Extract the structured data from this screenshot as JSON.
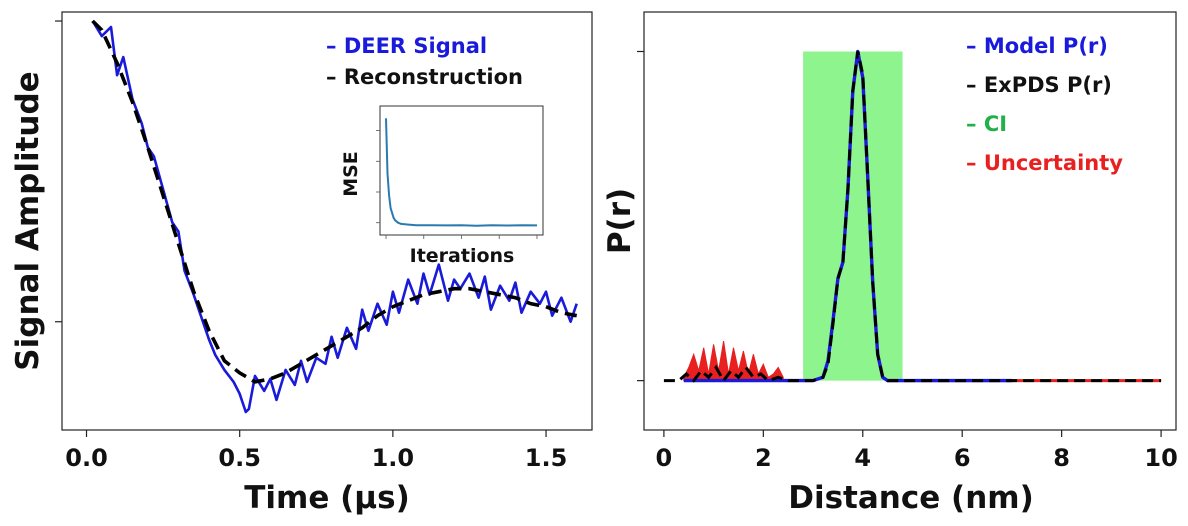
{
  "colors": {
    "deer": "#1a1adb",
    "reconstruction": "#000000",
    "model": "#1a1adb",
    "expds": "#000000",
    "ci": "#8ef58e",
    "ci_text": "#22b04a",
    "uncertainty": "#e82020",
    "inset_line": "#2a7ab0"
  },
  "chart_data": [
    {
      "type": "line",
      "title": "",
      "xlabel": "Time (μs)",
      "ylabel": "Signal Amplitude",
      "xlim": [
        -0.08,
        1.65
      ],
      "ylim": [
        -0.36,
        1.03
      ],
      "xticks": [
        0.0,
        0.5,
        1.0,
        1.5
      ],
      "xtick_labels": [
        "0.0",
        "0.5",
        "1.0",
        "1.5"
      ],
      "yticks": [
        0.0,
        1.0
      ],
      "legend_position": "top-right",
      "series": [
        {
          "name": "DEER Signal",
          "style": "solid",
          "color": "#1a1adb",
          "x": [
            0.02,
            0.05,
            0.08,
            0.1,
            0.12,
            0.15,
            0.18,
            0.2,
            0.22,
            0.25,
            0.28,
            0.3,
            0.32,
            0.35,
            0.38,
            0.4,
            0.42,
            0.45,
            0.48,
            0.5,
            0.52,
            0.53,
            0.55,
            0.58,
            0.6,
            0.62,
            0.65,
            0.68,
            0.7,
            0.72,
            0.75,
            0.78,
            0.8,
            0.82,
            0.85,
            0.88,
            0.9,
            0.92,
            0.95,
            0.98,
            1.0,
            1.02,
            1.05,
            1.08,
            1.1,
            1.12,
            1.15,
            1.18,
            1.2,
            1.22,
            1.25,
            1.28,
            1.3,
            1.32,
            1.35,
            1.38,
            1.4,
            1.42,
            1.45,
            1.48,
            1.5,
            1.52,
            1.55,
            1.58,
            1.6
          ],
          "y": [
            1.0,
            0.95,
            0.98,
            0.82,
            0.88,
            0.74,
            0.66,
            0.58,
            0.55,
            0.44,
            0.33,
            0.3,
            0.17,
            0.09,
            0.0,
            -0.06,
            -0.11,
            -0.16,
            -0.2,
            -0.24,
            -0.3,
            -0.29,
            -0.18,
            -0.23,
            -0.19,
            -0.26,
            -0.16,
            -0.21,
            -0.13,
            -0.2,
            -0.12,
            -0.14,
            -0.05,
            -0.12,
            -0.02,
            -0.09,
            0.04,
            -0.03,
            0.06,
            -0.01,
            0.1,
            0.03,
            0.14,
            0.06,
            0.16,
            0.09,
            0.19,
            0.07,
            0.14,
            0.11,
            0.16,
            0.08,
            0.15,
            0.04,
            0.12,
            0.07,
            0.13,
            0.03,
            0.1,
            0.06,
            0.1,
            0.02,
            0.08,
            0.0,
            0.06
          ]
        },
        {
          "name": "Reconstruction",
          "style": "dashed",
          "color": "#000000",
          "x": [
            0.02,
            0.05,
            0.1,
            0.15,
            0.2,
            0.25,
            0.3,
            0.35,
            0.4,
            0.45,
            0.5,
            0.55,
            0.6,
            0.65,
            0.7,
            0.75,
            0.8,
            0.85,
            0.9,
            0.95,
            1.0,
            1.05,
            1.1,
            1.15,
            1.2,
            1.25,
            1.3,
            1.35,
            1.4,
            1.45,
            1.5,
            1.55,
            1.6
          ],
          "y": [
            1.0,
            0.97,
            0.86,
            0.73,
            0.58,
            0.42,
            0.26,
            0.1,
            -0.03,
            -0.13,
            -0.17,
            -0.2,
            -0.19,
            -0.17,
            -0.14,
            -0.11,
            -0.08,
            -0.05,
            -0.02,
            0.02,
            0.05,
            0.07,
            0.09,
            0.1,
            0.11,
            0.11,
            0.1,
            0.09,
            0.08,
            0.06,
            0.05,
            0.03,
            0.02
          ]
        }
      ],
      "inset": {
        "xlabel": "Iterations",
        "ylabel": "MSE",
        "series": [
          {
            "name": "MSE",
            "x": [
              0,
              1,
              2,
              3,
              4,
              5,
              6,
              8,
              10,
              15,
              20,
              30,
              40,
              50,
              60,
              70,
              80,
              90,
              100
            ],
            "y": [
              0.95,
              0.5,
              0.32,
              0.22,
              0.18,
              0.14,
              0.12,
              0.1,
              0.09,
              0.085,
              0.08,
              0.08,
              0.078,
              0.08,
              0.076,
              0.08,
              0.077,
              0.08,
              0.078
            ]
          }
        ]
      }
    },
    {
      "type": "line",
      "title": "",
      "xlabel": "Distance (nm)",
      "ylabel": "P(r)",
      "xlim": [
        -0.4,
        10.3
      ],
      "ylim": [
        -0.15,
        1.12
      ],
      "xticks": [
        0,
        2,
        4,
        6,
        8,
        10
      ],
      "xtick_labels": [
        "0",
        "2",
        "4",
        "6",
        "8",
        "10"
      ],
      "yticks": [
        0.0,
        1.0
      ],
      "legend_position": "top-right",
      "ci_band": {
        "x_start": 2.8,
        "x_end": 4.8,
        "y_bottom": 0.0,
        "y_top": 1.0
      },
      "series": [
        {
          "name": "Model P(r)",
          "style": "solid",
          "color": "#1a1adb",
          "x": [
            0.4,
            1.0,
            2.0,
            3.0,
            3.2,
            3.3,
            3.4,
            3.5,
            3.6,
            3.7,
            3.8,
            3.9,
            4.0,
            4.1,
            4.2,
            4.3,
            4.4,
            4.5,
            5.0,
            6.0,
            7.0
          ],
          "y": [
            0,
            0,
            0,
            0,
            0.01,
            0.06,
            0.18,
            0.31,
            0.36,
            0.58,
            0.88,
            1.0,
            0.92,
            0.62,
            0.3,
            0.08,
            0.01,
            0,
            0,
            0,
            0
          ]
        },
        {
          "name": "ExPDS P(r)",
          "style": "dashed",
          "color": "#000000",
          "x": [
            0.0,
            0.3,
            0.45,
            0.6,
            0.75,
            0.9,
            1.05,
            1.2,
            1.35,
            1.5,
            1.65,
            1.8,
            1.95,
            2.1,
            2.3,
            2.5,
            3.0,
            3.2,
            3.3,
            3.4,
            3.5,
            3.6,
            3.7,
            3.8,
            3.9,
            4.0,
            4.1,
            4.2,
            4.3,
            4.4,
            4.5,
            5.0,
            6.0,
            7.0,
            8.0,
            9.0,
            10.0
          ],
          "y": [
            0,
            0,
            0.02,
            0.0,
            0.03,
            0.01,
            0.04,
            0.0,
            0.03,
            0.01,
            0.04,
            0.01,
            0.02,
            0.0,
            0.01,
            0,
            0,
            0.01,
            0.05,
            0.17,
            0.31,
            0.36,
            0.58,
            0.88,
            1.0,
            0.93,
            0.62,
            0.3,
            0.08,
            0.01,
            0,
            0,
            0,
            0,
            0,
            0,
            0
          ]
        },
        {
          "name": "Uncertainty",
          "style": "band",
          "color": "#e82020",
          "x": [
            0.4,
            0.5,
            0.6,
            0.7,
            0.8,
            0.9,
            1.0,
            1.1,
            1.2,
            1.3,
            1.4,
            1.5,
            1.6,
            1.7,
            1.8,
            1.9,
            2.0,
            2.1,
            2.2,
            2.3,
            2.4
          ],
          "y": [
            0.01,
            0.04,
            0.08,
            0.03,
            0.1,
            0.02,
            0.11,
            0.03,
            0.12,
            0.02,
            0.1,
            0.03,
            0.09,
            0.02,
            0.08,
            0.02,
            0.05,
            0.01,
            0.02,
            0.04,
            0.01
          ]
        }
      ]
    }
  ]
}
